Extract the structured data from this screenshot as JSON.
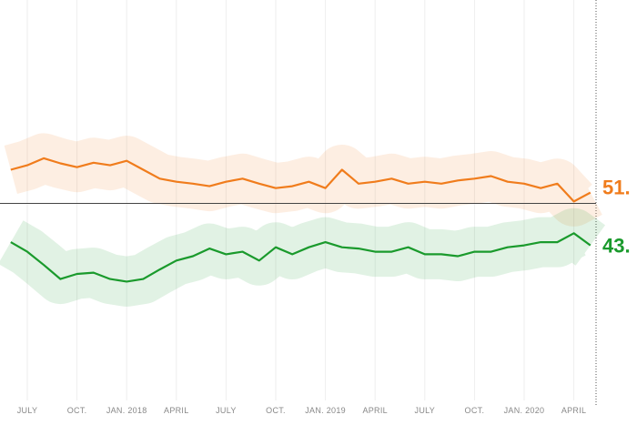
{
  "chart_data": {
    "type": "line",
    "categories": [
      null,
      "JULY",
      null,
      null,
      "OCT.",
      null,
      null,
      "JAN. 2018",
      null,
      null,
      "APRIL",
      null,
      null,
      "JULY",
      null,
      null,
      "OCT.",
      null,
      null,
      "JAN. 2019",
      null,
      null,
      "APRIL",
      null,
      null,
      "JULY",
      null,
      null,
      "OCT.",
      null,
      null,
      "JAN. 2020",
      null,
      null,
      "APRIL",
      null
    ],
    "series": [
      {
        "color": "#f07c1c",
        "values": [
          55.3,
          56,
          57.1,
          56.3,
          55.7,
          56.4,
          56,
          56.7,
          55.3,
          53.9,
          53.4,
          53.1,
          52.7,
          53.4,
          53.9,
          53.1,
          52.4,
          52.7,
          53.4,
          52.4,
          55.3,
          53.1,
          53.4,
          53.9,
          53.1,
          53.4,
          53.1,
          53.6,
          53.9,
          54.3,
          53.4,
          53.1,
          52.4,
          53.1,
          50.3,
          51.7
        ]
      },
      {
        "color": "#1a9a2c",
        "values": [
          43.9,
          42.4,
          40.3,
          38.1,
          38.9,
          39.1,
          38.1,
          37.7,
          38.1,
          39.6,
          41,
          41.7,
          42.9,
          42,
          42.4,
          41,
          43.1,
          42,
          43.1,
          43.9,
          43.1,
          42.9,
          42.4,
          42.4,
          43.1,
          42,
          42,
          41.7,
          42.4,
          42.4,
          43.1,
          43.4,
          43.9,
          43.9,
          45.3,
          43.4
        ]
      }
    ],
    "end_labels": [
      "51.",
      "43."
    ],
    "reference_line": 50,
    "ylim": [
      19,
      82
    ],
    "grid": true
  }
}
